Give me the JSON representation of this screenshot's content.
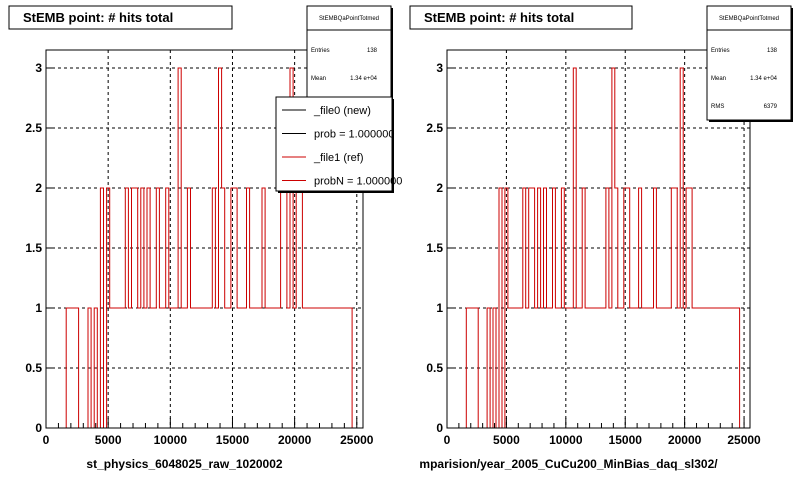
{
  "colors": {
    "histogram": "#cc0000",
    "frame": "#000000",
    "grid": "#000000",
    "background": "#ffffff"
  },
  "chart_data": [
    {
      "type": "bar",
      "title": "StEMB point: # hits total",
      "xlabel": "st_physics_6048025_raw_1020002",
      "ylabel": "",
      "xlim": [
        0,
        25500
      ],
      "ylim": [
        0,
        3.15
      ],
      "xticks": [
        "0",
        "5000",
        "10000",
        "15000",
        "20000",
        "25000"
      ],
      "yticks": [
        "0",
        "0.5",
        "1",
        "1.5",
        "2",
        "2.5",
        "3"
      ],
      "grid": true,
      "stats": {
        "name": "StEMBQaPointTotmed",
        "rows": [
          {
            "label": "Entries",
            "value": "138"
          },
          {
            "label": "Mean",
            "value": "1.34 e+04"
          }
        ]
      },
      "legend": {
        "position": "top-right",
        "entries": [
          {
            "label": "_file0 (new)",
            "color": "#000000"
          },
          {
            "label": "prob = 1.000000",
            "color": "#000000"
          },
          {
            "label": "_file1 (ref)",
            "color": "#cc0000"
          },
          {
            "label": "probN = 1.000000",
            "color": "#cc0000"
          }
        ]
      },
      "bin_width": 250,
      "x": [
        1750,
        2000,
        2250,
        2500,
        3500,
        4000,
        4500,
        5000,
        5250,
        5500,
        5750,
        6000,
        6250,
        6500,
        6750,
        7000,
        7250,
        7500,
        7750,
        8000,
        8250,
        8500,
        8750,
        9000,
        9250,
        9500,
        9750,
        10000,
        10250,
        10500,
        10750,
        11000,
        11250,
        11500,
        11750,
        12000,
        12250,
        12500,
        12750,
        13000,
        13250,
        13500,
        13750,
        14000,
        14250,
        14500,
        14750,
        15000,
        15250,
        15500,
        15750,
        16000,
        16250,
        16500,
        16750,
        17000,
        17250,
        17500,
        17750,
        18000,
        18250,
        18500,
        18750,
        19000,
        19250,
        19500,
        19750,
        20000,
        20250,
        20500,
        20750,
        21000,
        21250,
        21500,
        21750,
        22000,
        22250,
        22500,
        22750,
        23000,
        23250,
        23500,
        23750,
        24000,
        24250,
        24500
      ],
      "values": [
        1,
        1,
        1,
        1,
        1,
        1,
        2,
        2,
        1,
        1,
        1,
        1,
        1,
        2,
        1,
        2,
        2,
        1,
        2,
        1,
        2,
        1,
        1,
        2,
        1,
        1,
        2,
        1,
        1,
        1,
        3,
        1,
        1,
        2,
        1,
        1,
        1,
        1,
        1,
        1,
        1,
        2,
        1,
        3,
        2,
        1,
        1,
        2,
        2,
        1,
        1,
        1,
        2,
        1,
        1,
        1,
        1,
        2,
        1,
        1,
        1,
        1,
        1,
        2,
        2,
        1,
        3,
        1,
        2,
        2,
        1,
        1,
        1,
        1,
        1,
        1,
        1,
        1,
        1,
        1,
        1,
        1,
        1,
        1,
        1,
        1
      ]
    },
    {
      "type": "bar",
      "title": "StEMB point: # hits total",
      "xlabel": "mparision/year_2005_CuCu200_MinBias_daq_sl302/",
      "ylabel": "",
      "xlim": [
        0,
        25500
      ],
      "ylim": [
        0,
        3.15
      ],
      "xticks": [
        "0",
        "5000",
        "10000",
        "15000",
        "20000",
        "25000"
      ],
      "yticks": [
        "0",
        "0.5",
        "1",
        "1.5",
        "2",
        "2.5",
        "3"
      ],
      "grid": true,
      "stats": {
        "name": "StEMBQaPointTotmed",
        "rows": [
          {
            "label": "Entries",
            "value": "138"
          },
          {
            "label": "Mean",
            "value": "1.34 e+04"
          },
          {
            "label": "RMS",
            "value": "6379"
          }
        ]
      },
      "bin_width": 250,
      "x": [
        1750,
        2000,
        2250,
        2500,
        3500,
        4000,
        4500,
        5000,
        5250,
        5500,
        5750,
        6000,
        6250,
        6500,
        6750,
        7000,
        7250,
        7500,
        7750,
        8000,
        8250,
        8500,
        8750,
        9000,
        9250,
        9500,
        9750,
        10000,
        10250,
        10500,
        10750,
        11000,
        11250,
        11500,
        11750,
        12000,
        12250,
        12500,
        12750,
        13000,
        13250,
        13500,
        13750,
        14000,
        14250,
        14500,
        14750,
        15000,
        15250,
        15500,
        15750,
        16000,
        16250,
        16500,
        16750,
        17000,
        17250,
        17500,
        17750,
        18000,
        18250,
        18500,
        18750,
        19000,
        19250,
        19500,
        19750,
        20000,
        20250,
        20500,
        20750,
        21000,
        21250,
        21500,
        21750,
        22000,
        22250,
        22500,
        22750,
        23000,
        23250,
        23500,
        23750,
        24000,
        24250,
        24500
      ],
      "values": [
        1,
        1,
        1,
        1,
        1,
        1,
        2,
        2,
        1,
        1,
        1,
        1,
        1,
        2,
        1,
        2,
        2,
        1,
        2,
        1,
        2,
        1,
        1,
        2,
        1,
        1,
        2,
        1,
        1,
        1,
        3,
        1,
        1,
        2,
        1,
        1,
        1,
        1,
        1,
        1,
        1,
        2,
        1,
        3,
        2,
        1,
        1,
        2,
        2,
        1,
        1,
        1,
        2,
        1,
        1,
        1,
        1,
        2,
        1,
        1,
        1,
        1,
        1,
        2,
        2,
        1,
        3,
        1,
        2,
        2,
        1,
        1,
        1,
        1,
        1,
        1,
        1,
        1,
        1,
        1,
        1,
        1,
        1,
        1,
        1,
        1
      ]
    }
  ]
}
